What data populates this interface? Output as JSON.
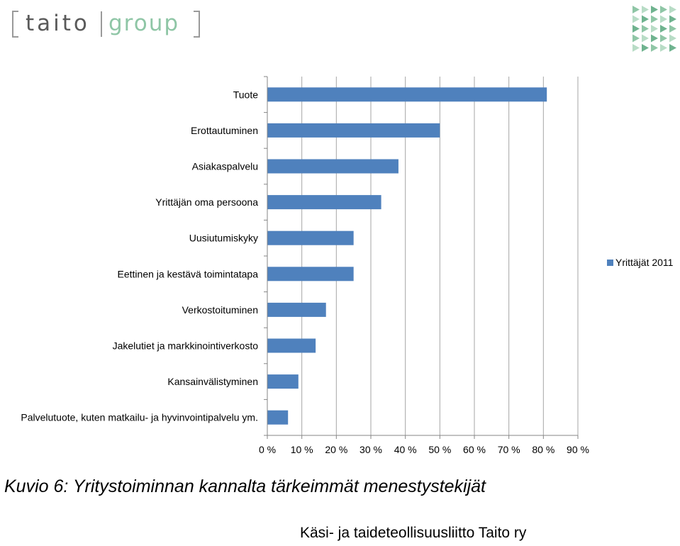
{
  "logo": {
    "bracket_word": "taito",
    "word": "group"
  },
  "chart_data": {
    "type": "bar",
    "orientation": "horizontal",
    "categories": [
      "Tuote",
      "Erottautuminen",
      "Asiakaspalvelu",
      "Yrittäjän oma persoona",
      "Uusiutumiskyky",
      "Eettinen ja kestävä toimintatapa",
      "Verkostoituminen",
      "Jakelutiet ja markkinointiverkosto",
      "Kansainvälistyminen",
      "Palvelutuote, kuten matkailu- ja hyvinvointipalvelu ym."
    ],
    "series": [
      {
        "name": "Yrittäjät 2011",
        "values": [
          81,
          50,
          38,
          33,
          25,
          25,
          17,
          14,
          9,
          6
        ],
        "color": "#4f81bd"
      }
    ],
    "xlim": [
      0,
      90
    ],
    "xticks": [
      {
        "value": 0,
        "label": "0 %"
      },
      {
        "value": 10,
        "label": "10 %"
      },
      {
        "value": 20,
        "label": "20 %"
      },
      {
        "value": 30,
        "label": "30 %"
      },
      {
        "value": 40,
        "label": "40 %"
      },
      {
        "value": 50,
        "label": "50 %"
      },
      {
        "value": 60,
        "label": "60 %"
      },
      {
        "value": 70,
        "label": "70 %"
      },
      {
        "value": 80,
        "label": "80 %"
      },
      {
        "value": 90,
        "label": "90 %"
      }
    ],
    "grid": true,
    "legend": "right"
  },
  "caption": "Kuvio 6: Yritystoiminnan kannalta tärkeimmät menestystekijät",
  "footer": "Käsi- ja taideteollisuusliitto Taito ry"
}
